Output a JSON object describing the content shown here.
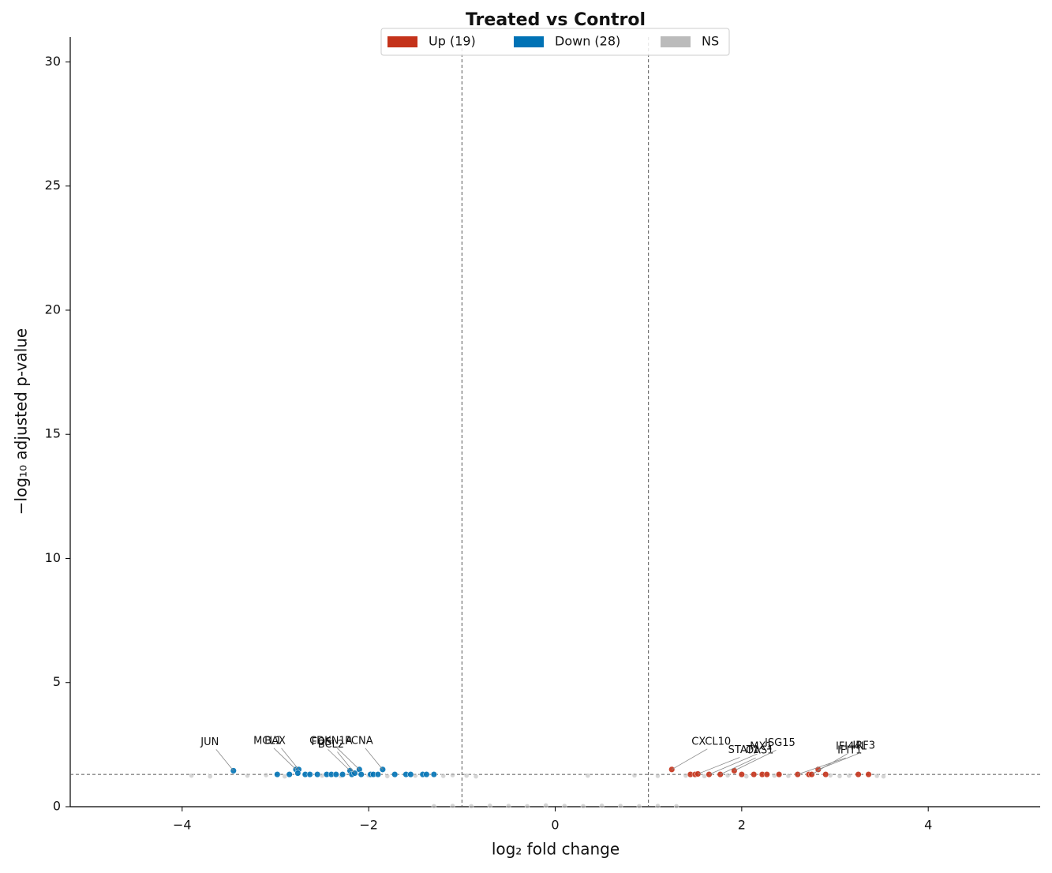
{
  "chart_data": {
    "type": "scatter",
    "title": "Treated vs Control",
    "x_label": "log₂ fold change",
    "y_label": "−log₁₀ adjusted p-value",
    "xlim": [
      -5.2,
      5.2
    ],
    "ylim": [
      0,
      31
    ],
    "xticks": [
      {
        "value": -4,
        "label": "−4"
      },
      {
        "value": -2,
        "label": "−2"
      },
      0,
      2,
      4
    ],
    "yticks": [
      0,
      5,
      10,
      15,
      20,
      25,
      30
    ],
    "vlines": [
      -1,
      1
    ],
    "hline": 1.3,
    "legend": "upper center",
    "series": [
      {
        "name": "Up (19)",
        "color": "#c4321a",
        "x": [
          1.25,
          1.45,
          1.5,
          1.53,
          1.65,
          1.77,
          1.92,
          2.0,
          2.13,
          2.22,
          2.27,
          2.4,
          2.6,
          2.72,
          2.75,
          2.82,
          2.9,
          3.25,
          3.36
        ],
        "values": [
          1.5,
          1.3,
          1.3,
          1.32,
          1.3,
          1.3,
          1.45,
          1.3,
          1.3,
          1.3,
          1.3,
          1.3,
          1.3,
          1.3,
          1.3,
          1.5,
          1.3,
          1.3,
          1.3
        ],
        "point_labels": [
          "CXCL10",
          null,
          null,
          "STAT1",
          "MX1",
          "OAS1",
          "ISG15",
          null,
          null,
          null,
          null,
          null,
          "IFIT1",
          null,
          "IFI44L",
          "IRF3",
          null,
          null,
          null
        ]
      },
      {
        "name": "Down (28)",
        "color": "#0072b5",
        "x": [
          -3.45,
          -2.98,
          -2.85,
          -2.78,
          -2.75,
          -2.76,
          -2.68,
          -2.63,
          -2.55,
          -2.45,
          -2.4,
          -2.35,
          -2.28,
          -2.2,
          -2.18,
          -2.15,
          -2.1,
          -2.08,
          -1.98,
          -1.95,
          -1.9,
          -1.85,
          -1.72,
          -1.6,
          -1.55,
          -1.42,
          -1.38,
          -1.3
        ],
        "values": [
          1.45,
          1.3,
          1.3,
          1.5,
          1.5,
          1.35,
          1.3,
          1.3,
          1.3,
          1.3,
          1.3,
          1.3,
          1.3,
          1.45,
          1.3,
          1.35,
          1.5,
          1.3,
          1.3,
          1.3,
          1.3,
          1.5,
          1.3,
          1.3,
          1.3,
          1.3,
          1.3,
          1.3
        ],
        "point_labels": [
          "JUN",
          null,
          null,
          "MCL1",
          "BAX",
          null,
          null,
          null,
          null,
          null,
          null,
          null,
          null,
          "FOS",
          null,
          "BCL2",
          "CDKN1A",
          null,
          null,
          null,
          null,
          "PCNA",
          null,
          null,
          null,
          null,
          null,
          null
        ]
      },
      {
        "name": "NS",
        "color": "#bbbbbb",
        "x": [
          -1.3,
          -1.1,
          -0.9,
          -0.7,
          -0.5,
          -0.3,
          -0.1,
          0.1,
          0.3,
          0.5,
          0.7,
          0.9,
          1.1,
          1.3,
          -3.9,
          -3.7,
          -3.3,
          -3.1,
          -2.9,
          -2.5,
          -2.3,
          -2.0,
          -1.8,
          -1.5,
          -1.2,
          -1.1,
          -0.95,
          -0.85,
          0.35,
          0.85,
          1.1,
          1.4,
          1.6,
          1.85,
          2.05,
          2.35,
          2.5,
          2.95,
          3.05,
          3.15,
          3.45,
          3.52
        ],
        "values": [
          0.02,
          0.03,
          0.02,
          0.04,
          0.03,
          0.02,
          0.05,
          0.03,
          0.02,
          0.04,
          0.03,
          0.02,
          0.03,
          0.02,
          1.25,
          1.22,
          1.25,
          1.27,
          1.22,
          1.25,
          1.24,
          1.26,
          1.23,
          1.25,
          1.24,
          1.27,
          1.25,
          1.22,
          1.25,
          1.26,
          1.24,
          1.25,
          1.23,
          1.26,
          1.22,
          1.25,
          1.24,
          1.26,
          1.23,
          1.25,
          1.24,
          1.22
        ]
      }
    ]
  }
}
